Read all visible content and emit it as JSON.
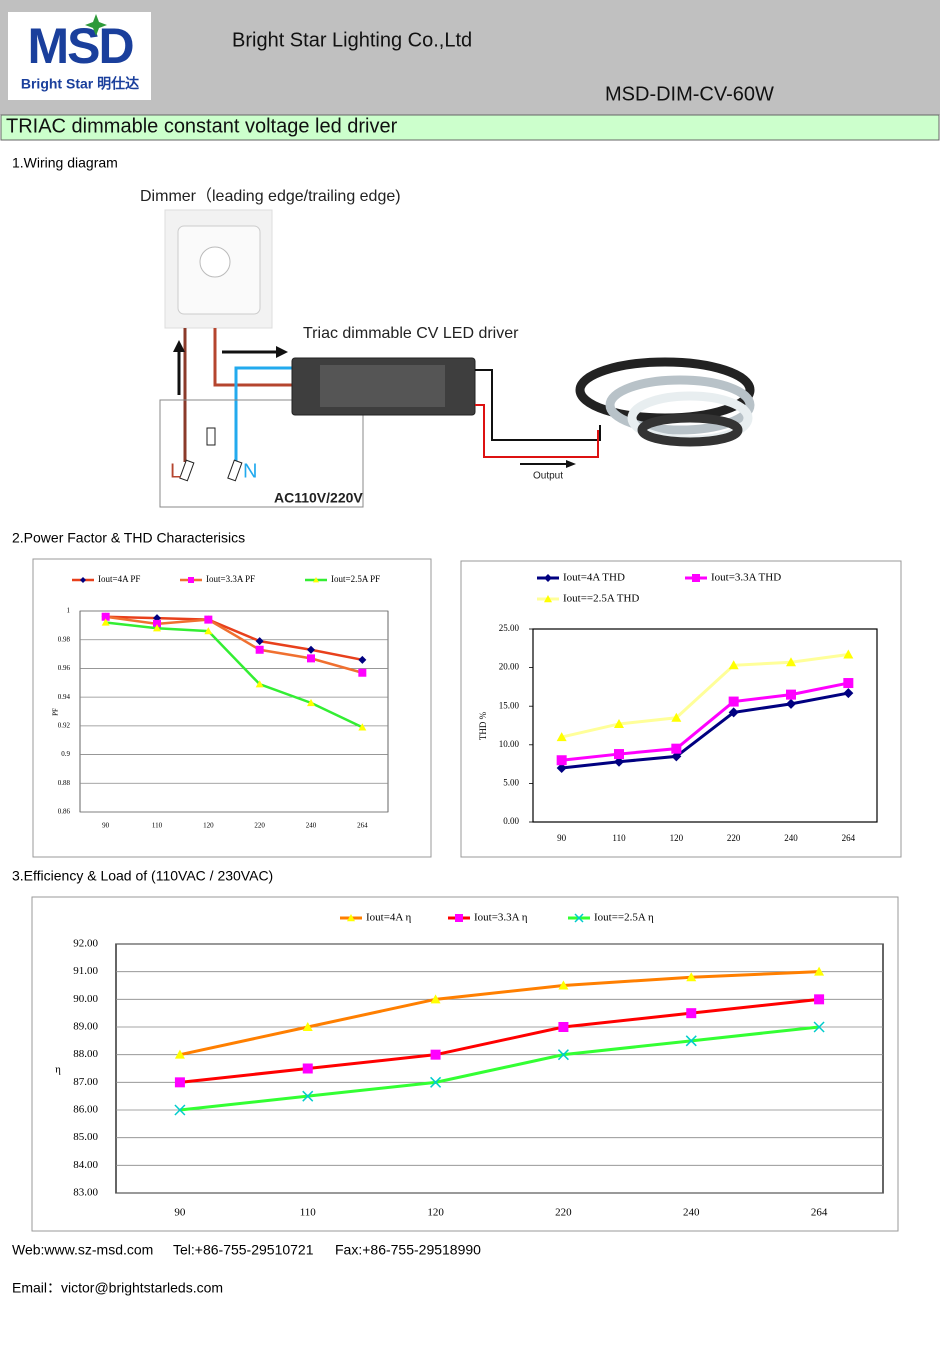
{
  "header": {
    "logo_text": "MSD",
    "logo_subtitle": "Bright Star 明仕达",
    "company": "Bright Star Lighting Co.,Ltd",
    "model": "MSD-DIM-CV-60W"
  },
  "title": "TRIAC dimmable constant voltage led driver",
  "sections": [
    "1.Wiring diagram",
    "2.Power Factor & THD Characterisics",
    "3.Efficiency & Load of (110VAC / 230VAC)"
  ],
  "wiring": {
    "dimmer": "Dimmer（leading  edge/trailing edge)",
    "driver": "Triac dimmable CV LED driver",
    "output": "Output",
    "input": "AC110V/220V",
    "live": "L",
    "neutral": "N"
  },
  "chart_data": [
    {
      "type": "line",
      "ylabel": "PF",
      "categories": [
        "90",
        "110",
        "120",
        "220",
        "240",
        "264"
      ],
      "ylim": [
        0.86,
        1
      ],
      "yticks": [
        0.86,
        0.88,
        0.9,
        0.92,
        0.94,
        0.96,
        0.98,
        1
      ],
      "grid": true,
      "series": [
        {
          "name": "Iout=4A PF",
          "color": "#e8401c",
          "marker": "diamond",
          "marker_color": "#000080",
          "values": [
            0.996,
            0.995,
            0.994,
            0.979,
            0.973,
            0.966
          ]
        },
        {
          "name": "Iout=3.3A PF",
          "color": "#f07030",
          "marker": "square",
          "marker_color": "#ff00ff",
          "values": [
            0.996,
            0.991,
            0.994,
            0.973,
            0.967,
            0.957
          ]
        },
        {
          "name": "Iout=2.5A PF",
          "color": "#33ee33",
          "marker": "triangle",
          "marker_color": "#ffff00",
          "values": [
            0.992,
            0.988,
            0.986,
            0.949,
            0.936,
            0.919
          ]
        }
      ]
    },
    {
      "type": "line",
      "ylabel": "THD %",
      "categories": [
        "90",
        "110",
        "120",
        "220",
        "240",
        "264"
      ],
      "ylim": [
        0,
        25
      ],
      "yticks": [
        {
          "value": 0,
          "label": "0.00"
        },
        {
          "value": 5,
          "label": "5.00"
        },
        {
          "value": 10,
          "label": "10.00"
        },
        {
          "value": 15,
          "label": "15.00"
        },
        {
          "value": 20,
          "label": "20.00"
        },
        {
          "value": 25,
          "label": "25.00"
        }
      ],
      "grid": false,
      "series": [
        {
          "name": "Iout=4A THD",
          "color": "#000080",
          "marker": "diamond",
          "marker_color": "#000080",
          "values": [
            7.0,
            7.8,
            8.5,
            14.2,
            15.3,
            16.7
          ]
        },
        {
          "name": "Iout=3.3A THD",
          "color": "#ff00ff",
          "marker": "square",
          "marker_color": "#ff00ff",
          "values": [
            8.0,
            8.8,
            9.5,
            15.6,
            16.5,
            18.0
          ]
        },
        {
          "name": "Iout==2.5A THD",
          "color": "#ffff99",
          "marker": "triangle",
          "marker_color": "#ffff00",
          "values": [
            11.0,
            12.7,
            13.5,
            20.3,
            20.7,
            21.7
          ]
        }
      ]
    },
    {
      "type": "line",
      "ylabel": "η",
      "categories": [
        "90",
        "110",
        "120",
        "220",
        "240",
        "264"
      ],
      "ylim": [
        83,
        92
      ],
      "yticks": [
        {
          "value": 83,
          "label": "83.00"
        },
        {
          "value": 84,
          "label": "84.00"
        },
        {
          "value": 85,
          "label": "85.00"
        },
        {
          "value": 86,
          "label": "86.00"
        },
        {
          "value": 87,
          "label": "87.00"
        },
        {
          "value": 88,
          "label": "88.00"
        },
        {
          "value": 89,
          "label": "89.00"
        },
        {
          "value": 90,
          "label": "90.00"
        },
        {
          "value": 91,
          "label": "91.00"
        },
        {
          "value": 92,
          "label": "92.00"
        }
      ],
      "grid": true,
      "series": [
        {
          "name": "Iout=4A  η",
          "color": "#ff7f00",
          "marker": "triangle",
          "marker_color": "#ffff00",
          "values": [
            88,
            89,
            90,
            90.5,
            90.8,
            91
          ]
        },
        {
          "name": "Iout=3.3A  η",
          "color": "#ff0000",
          "marker": "square",
          "marker_color": "#ff00ff",
          "values": [
            87,
            87.5,
            88,
            89,
            89.5,
            90
          ]
        },
        {
          "name": "Iout==2.5A  η",
          "color": "#33ff33",
          "marker": "x",
          "marker_color": "#00cccc",
          "values": [
            86,
            86.5,
            87,
            88,
            88.5,
            89
          ]
        }
      ]
    }
  ],
  "footer": {
    "web": "Web:www.sz-msd.com",
    "tel": "Tel:+86-755-29510721",
    "fax": "Fax:+86-755-29518990",
    "email": "Email：victor@brightstarleds.com"
  }
}
